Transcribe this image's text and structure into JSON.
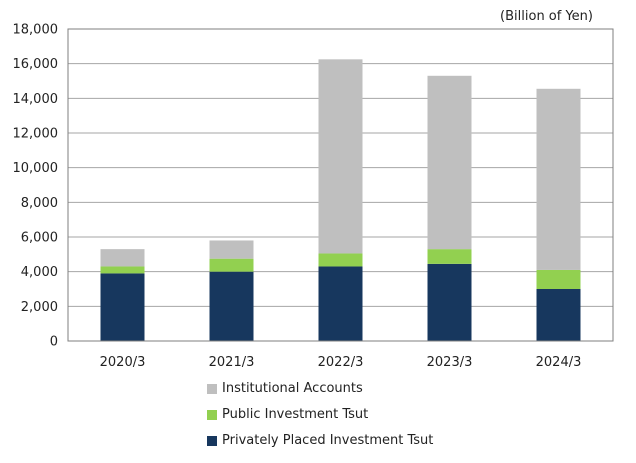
{
  "chart_data": {
    "type": "bar",
    "stacked": true,
    "unit_label": "(Billion of Yen)",
    "categories": [
      "2020/3",
      "2021/3",
      "2022/3",
      "2023/3",
      "2024/3"
    ],
    "y_ticks": [
      "0",
      "2,000",
      "4,000",
      "6,000",
      "8,000",
      "10,000",
      "12,000",
      "14,000",
      "16,000",
      "18,000"
    ],
    "ylim": [
      0,
      18000
    ],
    "grid": true,
    "legend_position": "bottom",
    "series": [
      {
        "name": "Privately Placed Investment Tsut",
        "color": "#17375e",
        "values": [
          3900,
          4000,
          4300,
          4450,
          3000
        ]
      },
      {
        "name": "Public Investment Tsut",
        "color": "#92d050",
        "values": [
          400,
          750,
          750,
          850,
          1100
        ]
      },
      {
        "name": "Institutional Accounts",
        "color": "#bfbfbf",
        "values": [
          1000,
          1050,
          11200,
          10000,
          10450
        ]
      }
    ],
    "legend_order": [
      2,
      1,
      0
    ]
  }
}
